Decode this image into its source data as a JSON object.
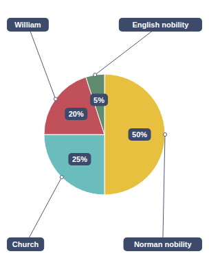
{
  "chart_data": {
    "type": "pie",
    "categories": [
      "Norman nobility",
      "Church",
      "William",
      "English nobility"
    ],
    "values": [
      50,
      25,
      20,
      5
    ],
    "value_labels": [
      "50%",
      "25%",
      "20%",
      "5%"
    ],
    "colors": [
      "#E8C040",
      "#6BBCBC",
      "#C0505A",
      "#5F8C6E"
    ],
    "data_labels": true
  }
}
